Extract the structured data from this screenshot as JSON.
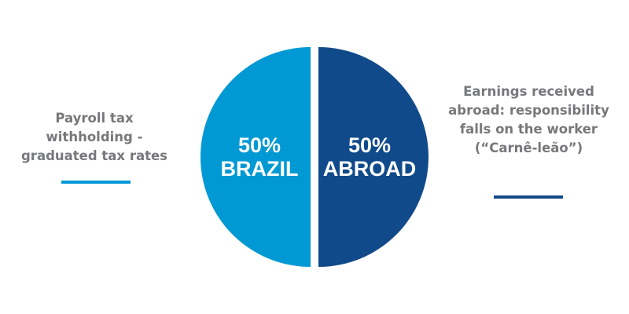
{
  "chart_data": {
    "type": "pie",
    "slices": [
      {
        "label": "BRAZIL",
        "value": 50,
        "value_label": "50%",
        "color": "#0099d3"
      },
      {
        "label": "ABROAD",
        "value": 50,
        "value_label": "50%",
        "color": "#114a8a"
      }
    ],
    "annotations": {
      "left": "Payroll tax withholding - graduated tax rates",
      "right": "Earnings received abroad: responsibility falls on the worker (“Carnê-leão”)"
    }
  },
  "text_color": "#77787b"
}
